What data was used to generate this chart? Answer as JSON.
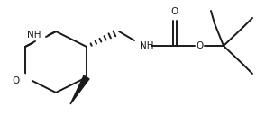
{
  "bg_color": "#ffffff",
  "line_color": "#1a1a1a",
  "lw": 1.4,
  "figsize": [
    2.84,
    1.38
  ],
  "dpi": 100,
  "xlim": [
    0,
    284
  ],
  "ylim": [
    0,
    138
  ]
}
